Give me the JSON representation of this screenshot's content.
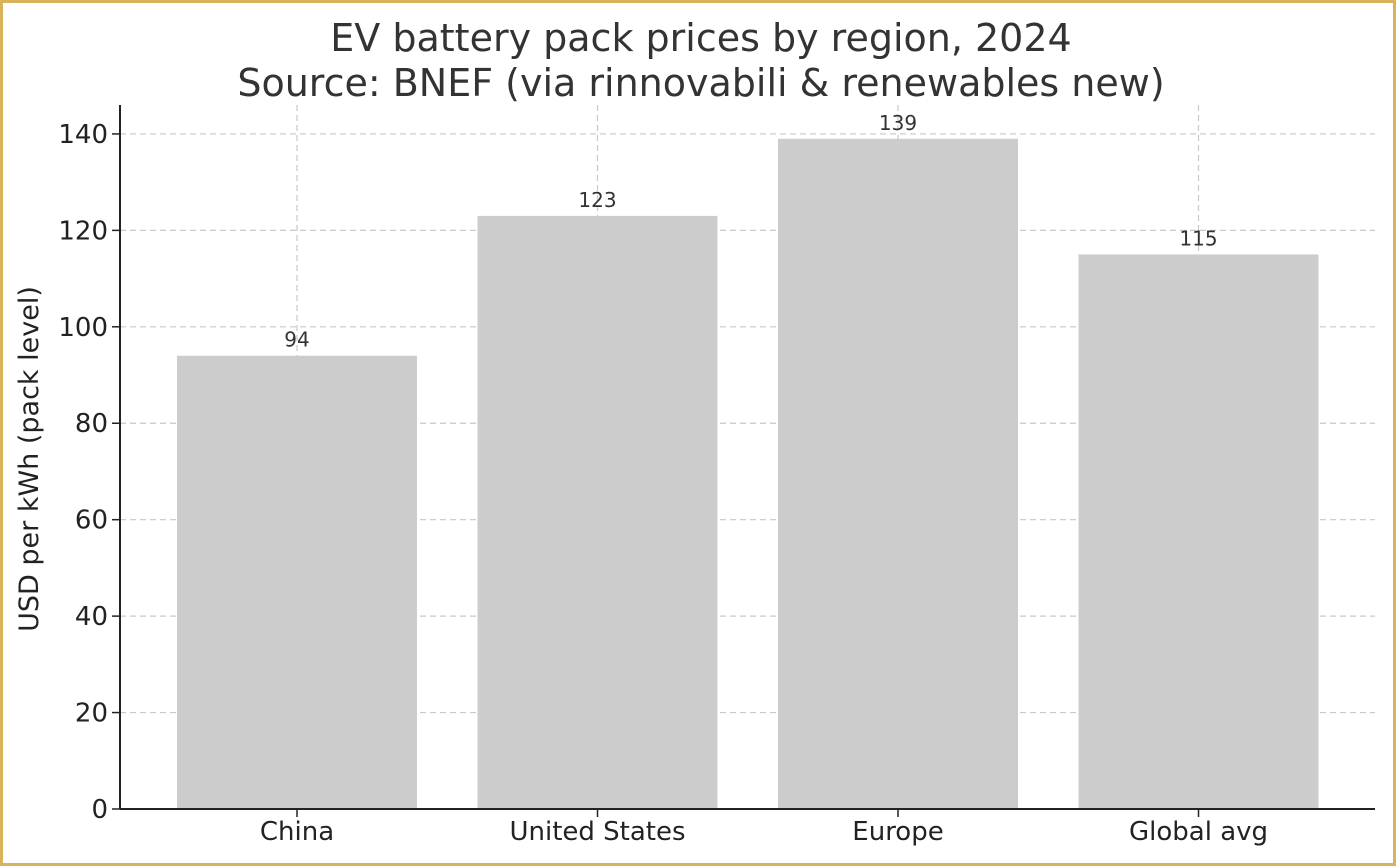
{
  "chart_data": {
    "type": "bar",
    "title": "EV battery pack prices by region, 2024",
    "subtitle": "Source: BNEF (via rinnovabili & renewables new)",
    "categories": [
      "China",
      "United States",
      "Europe",
      "Global avg"
    ],
    "values": [
      94,
      123,
      139,
      115
    ],
    "data_labels": [
      "94",
      "123",
      "139",
      "115"
    ],
    "xlabel": "",
    "ylabel": "USD per kWh (pack level)",
    "ylim": [
      0,
      146
    ],
    "yticks": [
      0,
      20,
      40,
      60,
      80,
      100,
      120,
      140
    ],
    "grid": true,
    "legend": "none",
    "colors": {
      "bar": "#cccccc",
      "grid": "#c8c8c8",
      "axis": "#222222",
      "frame": "#d8b35a"
    }
  }
}
